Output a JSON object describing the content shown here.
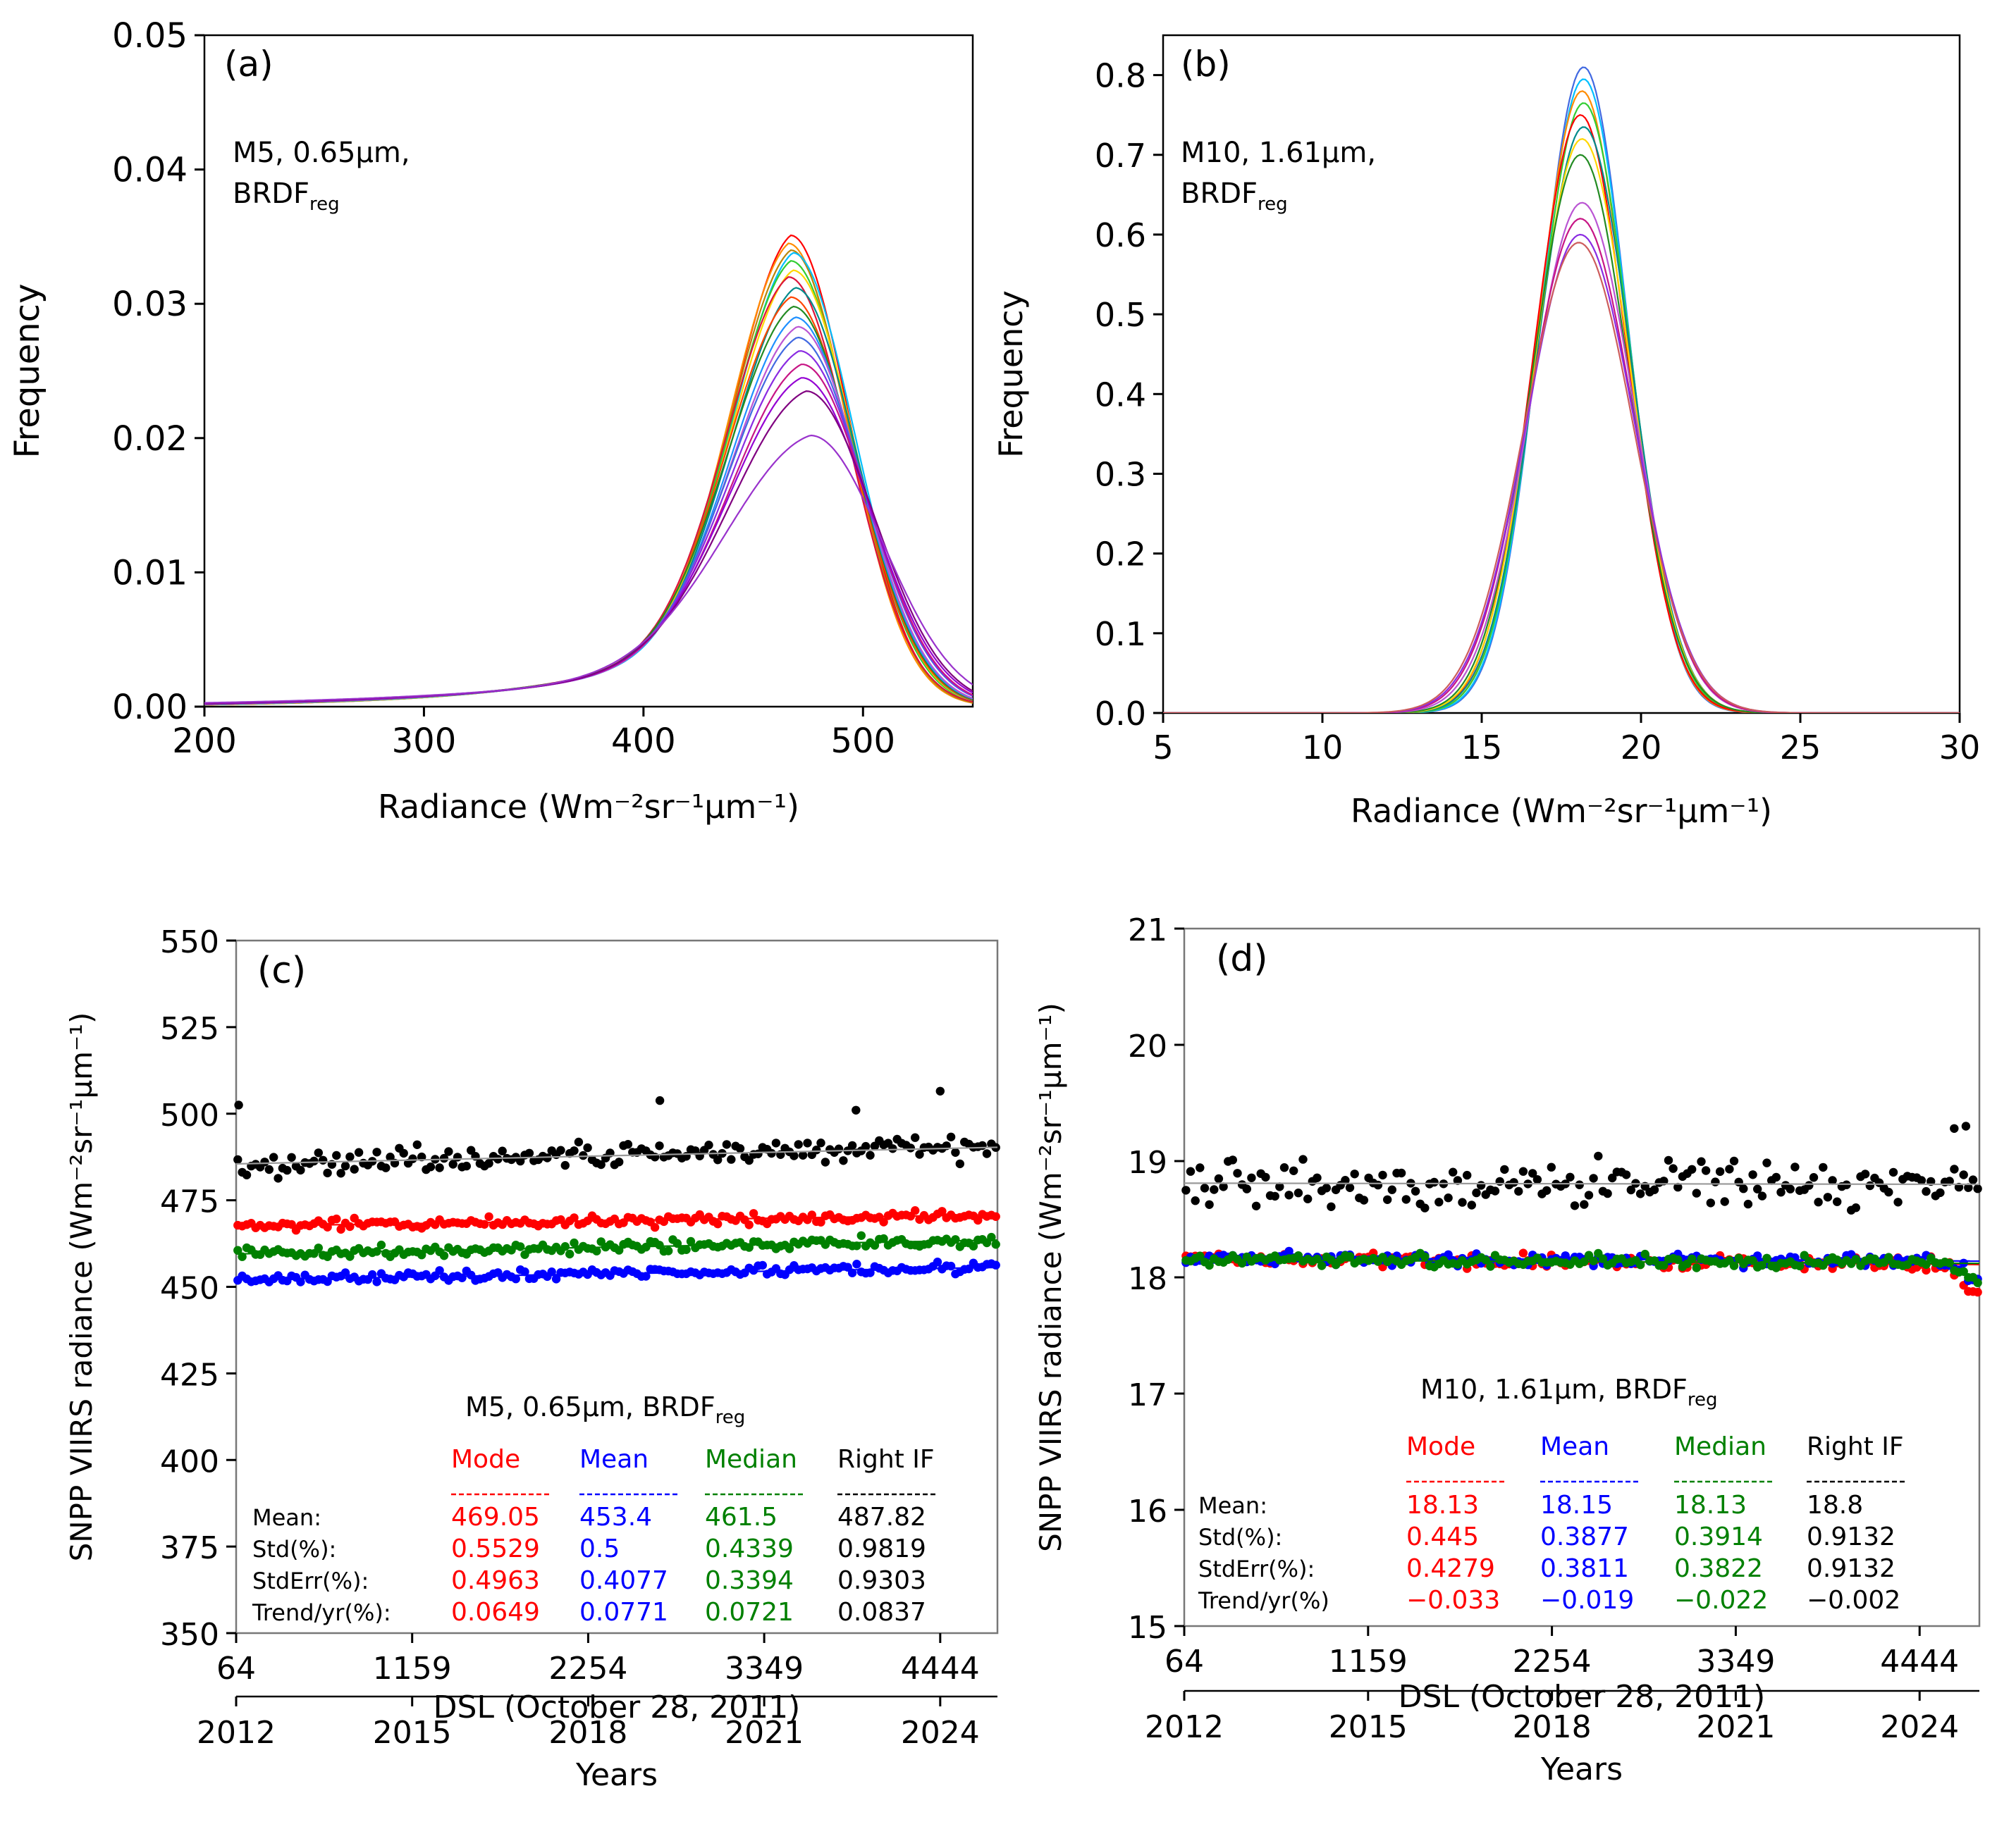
{
  "colors": {
    "mode": "#ff0000",
    "mean": "#0000ff",
    "median": "#008000",
    "right": "#000000",
    "fit": "#999999",
    "axis": "#000000"
  },
  "chart_data": [
    {
      "id": "a",
      "type": "line",
      "panel_label": "(a)",
      "annotation_lines": [
        "M5, 0.65µm,",
        "BRDF"
      ],
      "annotation_sub": "reg",
      "xlabel": "Radiance (Wm⁻²sr⁻¹µm⁻¹)",
      "ylabel": "Frequency",
      "xlim": [
        200,
        550
      ],
      "ylim": [
        0,
        0.05
      ],
      "xticks": [
        200,
        300,
        400,
        500
      ],
      "xtick_labels": [
        "200",
        "300",
        "400",
        "500"
      ],
      "yticks": [
        0,
        0.01,
        0.02,
        0.03,
        0.04,
        0.05
      ],
      "ytick_labels": [
        "0.00",
        "0.01",
        "0.02",
        "0.03",
        "0.04",
        "0.05"
      ],
      "curve_model": "skewed-peak",
      "curves": [
        {
          "color": "#ff0000",
          "peak_x": 467,
          "peak_y": 0.0351,
          "left_w": 34,
          "right_w": 27
        },
        {
          "color": "#ff8c00",
          "peak_x": 466,
          "peak_y": 0.0345,
          "left_w": 34,
          "right_w": 27
        },
        {
          "color": "#b8860b",
          "peak_x": 467,
          "peak_y": 0.034,
          "left_w": 35,
          "right_w": 27
        },
        {
          "color": "#00bfff",
          "peak_x": 468,
          "peak_y": 0.0338,
          "left_w": 35,
          "right_w": 28
        },
        {
          "color": "#32cd32",
          "peak_x": 467,
          "peak_y": 0.0332,
          "left_w": 35,
          "right_w": 28
        },
        {
          "color": "#ffd700",
          "peak_x": 468,
          "peak_y": 0.0325,
          "left_w": 36,
          "right_w": 28
        },
        {
          "color": "#dc143c",
          "peak_x": 466,
          "peak_y": 0.032,
          "left_w": 36,
          "right_w": 28
        },
        {
          "color": "#008b8b",
          "peak_x": 469,
          "peak_y": 0.0312,
          "left_w": 37,
          "right_w": 28
        },
        {
          "color": "#ff4500",
          "peak_x": 467,
          "peak_y": 0.0305,
          "left_w": 37,
          "right_w": 29
        },
        {
          "color": "#228b22",
          "peak_x": 468,
          "peak_y": 0.0298,
          "left_w": 38,
          "right_w": 29
        },
        {
          "color": "#1e90ff",
          "peak_x": 469,
          "peak_y": 0.029,
          "left_w": 38,
          "right_w": 29
        },
        {
          "color": "#ba55d3",
          "peak_x": 470,
          "peak_y": 0.0283,
          "left_w": 39,
          "right_w": 29
        },
        {
          "color": "#4169e1",
          "peak_x": 470,
          "peak_y": 0.0275,
          "left_w": 40,
          "right_w": 30
        },
        {
          "color": "#8a2be2",
          "peak_x": 471,
          "peak_y": 0.0265,
          "left_w": 41,
          "right_w": 30
        },
        {
          "color": "#c71585",
          "peak_x": 472,
          "peak_y": 0.0255,
          "left_w": 42,
          "right_w": 30
        },
        {
          "color": "#9400d3",
          "peak_x": 472,
          "peak_y": 0.0245,
          "left_w": 43,
          "right_w": 31
        },
        {
          "color": "#800080",
          "peak_x": 474,
          "peak_y": 0.0235,
          "left_w": 45,
          "right_w": 31
        },
        {
          "color": "#9932cc",
          "peak_x": 476,
          "peak_y": 0.0202,
          "left_w": 50,
          "right_w": 33
        }
      ]
    },
    {
      "id": "b",
      "type": "line",
      "panel_label": "(b)",
      "annotation_lines": [
        "M10, 1.61µm,",
        "BRDF"
      ],
      "annotation_sub": "reg",
      "xlabel": "Radiance (Wm⁻²sr⁻¹µm⁻¹)",
      "ylabel": "Frequency",
      "xlim": [
        5,
        30
      ],
      "ylim": [
        0,
        0.85
      ],
      "xticks": [
        5,
        10,
        15,
        20,
        25,
        30
      ],
      "xtick_labels": [
        "5",
        "10",
        "15",
        "20",
        "25",
        "30"
      ],
      "yticks": [
        0,
        0.1,
        0.2,
        0.3,
        0.4,
        0.5,
        0.6,
        0.7,
        0.8
      ],
      "ytick_labels": [
        "0.0",
        "0.1",
        "0.2",
        "0.3",
        "0.4",
        "0.5",
        "0.6",
        "0.7",
        "0.8"
      ],
      "curve_model": "gaussian",
      "curves": [
        {
          "color": "#4169e1",
          "peak_x": 18.2,
          "peak_y": 0.81,
          "left_w": 1.38,
          "right_w": 1.38
        },
        {
          "color": "#00bfff",
          "peak_x": 18.2,
          "peak_y": 0.795,
          "left_w": 1.4,
          "right_w": 1.4
        },
        {
          "color": "#ff8c00",
          "peak_x": 18.15,
          "peak_y": 0.78,
          "left_w": 1.42,
          "right_w": 1.42
        },
        {
          "color": "#32cd32",
          "peak_x": 18.2,
          "peak_y": 0.765,
          "left_w": 1.44,
          "right_w": 1.44
        },
        {
          "color": "#ff0000",
          "peak_x": 18.1,
          "peak_y": 0.75,
          "left_w": 1.46,
          "right_w": 1.46
        },
        {
          "color": "#008b8b",
          "peak_x": 18.2,
          "peak_y": 0.735,
          "left_w": 1.48,
          "right_w": 1.48
        },
        {
          "color": "#ffd700",
          "peak_x": 18.15,
          "peak_y": 0.72,
          "left_w": 1.5,
          "right_w": 1.5
        },
        {
          "color": "#228b22",
          "peak_x": 18.1,
          "peak_y": 0.7,
          "left_w": 1.52,
          "right_w": 1.52
        },
        {
          "color": "#ba55d3",
          "peak_x": 18.15,
          "peak_y": 0.64,
          "left_w": 1.62,
          "right_w": 1.62
        },
        {
          "color": "#c71585",
          "peak_x": 18.1,
          "peak_y": 0.62,
          "left_w": 1.66,
          "right_w": 1.66
        },
        {
          "color": "#8a2be2",
          "peak_x": 18.1,
          "peak_y": 0.6,
          "left_w": 1.7,
          "right_w": 1.7
        },
        {
          "color": "#cd5c5c",
          "peak_x": 18.05,
          "peak_y": 0.59,
          "left_w": 1.72,
          "right_w": 1.72
        }
      ]
    },
    {
      "id": "c",
      "type": "scatter",
      "panel_label": "(c)",
      "title_text": "M5, 0.65µm, BRDF",
      "title_sub": "reg",
      "xlabel": "DSL (October 28, 2011)",
      "x2label": "Years",
      "ylabel": "SNPP VIIRS radiance (Wm⁻²sr⁻¹µm⁻¹)",
      "xlim": [
        64,
        4800
      ],
      "ylim": [
        350,
        550
      ],
      "xticks": [
        64,
        1159,
        2254,
        3349,
        4444
      ],
      "xtick_labels": [
        "64",
        "1159",
        "2254",
        "3349",
        "4444"
      ],
      "yticks": [
        350,
        375,
        400,
        425,
        450,
        475,
        500,
        525,
        550
      ],
      "ytick_labels": [
        "350",
        "375",
        "400",
        "425",
        "450",
        "475",
        "500",
        "525",
        "550"
      ],
      "year_ticks": [
        64,
        1159,
        2254,
        3349,
        4444
      ],
      "year_labels": [
        "2012",
        "2015",
        "2018",
        "2021",
        "2024"
      ],
      "n_points": 170,
      "series": [
        {
          "name": "Mode",
          "color": "#ff0000",
          "start": 467.5,
          "end": 470.8,
          "noise": 1.5
        },
        {
          "name": "Mean",
          "color": "#0000ff",
          "start": 452.0,
          "end": 455.6,
          "noise": 1.4
        },
        {
          "name": "Median",
          "color": "#008000",
          "start": 459.5,
          "end": 463.5,
          "noise": 1.5
        },
        {
          "name": "Right IF",
          "color": "#000000",
          "start": 485.5,
          "end": 490.3,
          "noise": 3.0,
          "outliers": [
            [
              80,
              502.5
            ],
            [
              2700,
              503.8
            ],
            [
              3920,
              501.0
            ],
            [
              4444,
              506.5
            ]
          ]
        }
      ],
      "stats_columns": [
        "Mode",
        "Mean",
        "Median",
        "Right IF"
      ],
      "stats_rows": [
        {
          "label": "Mean:",
          "values": [
            "469.05",
            "453.4",
            "461.5",
            "487.82"
          ]
        },
        {
          "label": "Std(%):",
          "values": [
            "0.5529",
            "0.5",
            "0.4339",
            "0.9819"
          ]
        },
        {
          "label": "StdErr(%):",
          "values": [
            "0.4963",
            "0.4077",
            "0.3394",
            "0.9303"
          ]
        },
        {
          "label": "Trend/yr(%):",
          "values": [
            "0.0649",
            "0.0771",
            "0.0721",
            "0.0837"
          ]
        }
      ]
    },
    {
      "id": "d",
      "type": "scatter",
      "panel_label": "(d)",
      "title_text": "M10, 1.61µm,  BRDF",
      "title_sub": "reg",
      "xlabel": "DSL (October 28, 2011)",
      "x2label": "Years",
      "ylabel": "SNPP VIIRS radiance (Wm⁻²sr⁻¹µm⁻¹)",
      "xlim": [
        64,
        4800
      ],
      "ylim": [
        15,
        21
      ],
      "xticks": [
        64,
        1159,
        2254,
        3349,
        4444
      ],
      "xtick_labels": [
        "64",
        "1159",
        "2254",
        "3349",
        "4444"
      ],
      "yticks": [
        15,
        16,
        17,
        18,
        19,
        20,
        21
      ],
      "ytick_labels": [
        "15",
        "16",
        "17",
        "18",
        "19",
        "20",
        "21"
      ],
      "year_ticks": [
        64,
        1159,
        2254,
        3349,
        4444
      ],
      "year_labels": [
        "2012",
        "2015",
        "2018",
        "2021",
        "2024"
      ],
      "n_points": 170,
      "series": [
        {
          "name": "Mode",
          "color": "#ff0000",
          "start": 18.16,
          "end": 18.11,
          "noise": 0.05
        },
        {
          "name": "Mean",
          "color": "#0000ff",
          "start": 18.17,
          "end": 18.14,
          "noise": 0.05
        },
        {
          "name": "Median",
          "color": "#008000",
          "start": 18.15,
          "end": 18.12,
          "noise": 0.05
        },
        {
          "name": "Right IF",
          "color": "#000000",
          "start": 18.81,
          "end": 18.8,
          "noise": 0.17,
          "outliers": [
            [
              4650,
              19.28
            ],
            [
              4720,
              19.3
            ]
          ]
        }
      ],
      "stats_columns": [
        "Mode",
        "Mean",
        "Median",
        "Right IF"
      ],
      "stats_rows": [
        {
          "label": "Mean:",
          "values": [
            "18.13",
            "18.15",
            "18.13",
            "18.8"
          ]
        },
        {
          "label": "Std(%):",
          "values": [
            "0.445",
            "0.3877",
            "0.3914",
            "0.9132"
          ]
        },
        {
          "label": "StdErr(%):",
          "values": [
            "0.4279",
            "0.3811",
            "0.3822",
            "0.9132"
          ]
        },
        {
          "label": "Trend/yr(%)",
          "values": [
            "−0.033",
            "−0.019",
            "−0.022",
            "−0.002"
          ]
        }
      ]
    }
  ]
}
